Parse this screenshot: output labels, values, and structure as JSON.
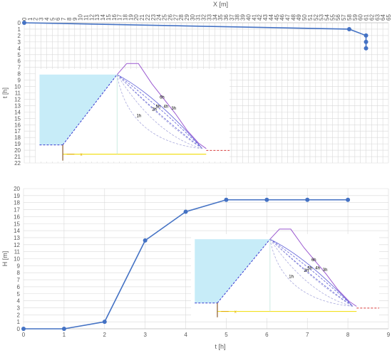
{
  "chart_data": [
    {
      "type": "line",
      "title": "",
      "xlabel": "X [m]",
      "ylabel": "t [h]",
      "x_axis_position": "top",
      "y_axis_inverted": true,
      "xlim": [
        0,
        65
      ],
      "ylim": [
        0,
        22
      ],
      "xticks": [
        "0",
        "1",
        "2",
        "3",
        "4",
        "5",
        "6",
        "7",
        "8",
        "9",
        "10",
        "11",
        "12",
        "13",
        "14",
        "15",
        "16",
        "17",
        "18",
        "19",
        "20",
        "21",
        "22",
        "23",
        "24",
        "25",
        "26",
        "27",
        "28",
        "29",
        "30",
        "31",
        "32",
        "33",
        "34",
        "35",
        "36",
        "37",
        "38",
        "39",
        "40",
        "41",
        "42",
        "43",
        "44",
        "45",
        "46",
        "47",
        "48",
        "49",
        "50",
        "51",
        "52",
        "53",
        "54",
        "55",
        "56",
        "57",
        "58",
        "59",
        "60",
        "61",
        "62",
        "63",
        "64",
        "65"
      ],
      "yticks": [
        "0",
        "1",
        "2",
        "3",
        "4",
        "5",
        "6",
        "7",
        "8",
        "9",
        "10",
        "11",
        "12",
        "13",
        "14",
        "15",
        "16",
        "17",
        "18",
        "19",
        "20",
        "21",
        "22"
      ],
      "grid": true,
      "series": [
        {
          "name": "",
          "color": "#4472c4",
          "points": [
            [
              0,
              0
            ],
            [
              58,
              1
            ],
            [
              61,
              2
            ],
            [
              61,
              3
            ],
            [
              61,
              4
            ]
          ]
        }
      ],
      "inset_labels": [
        "6h",
        "5h",
        "4h",
        "3h",
        "2h",
        "1h",
        "x"
      ]
    },
    {
      "type": "line",
      "title": "",
      "xlabel": "t [h]",
      "ylabel": "H [m]",
      "xlim": [
        0,
        9
      ],
      "ylim": [
        0,
        20
      ],
      "xticks": [
        "0",
        "1",
        "2",
        "3",
        "4",
        "5",
        "6",
        "7",
        "8",
        "9"
      ],
      "yticks": [
        "0",
        "1",
        "2",
        "3",
        "4",
        "5",
        "6",
        "7",
        "8",
        "9",
        "10",
        "11",
        "12",
        "13",
        "14",
        "15",
        "16",
        "17",
        "18",
        "19",
        "20"
      ],
      "grid": true,
      "series": [
        {
          "name": "",
          "color": "#4472c4",
          "points": [
            [
              0,
              0
            ],
            [
              1,
              0
            ],
            [
              2,
              1
            ],
            [
              3,
              12.6
            ],
            [
              4,
              16.7
            ],
            [
              5,
              18.4
            ],
            [
              6,
              18.4
            ],
            [
              7,
              18.4
            ],
            [
              8,
              18.4
            ]
          ]
        }
      ],
      "inset_labels": [
        "6h",
        "5h",
        "4h",
        "3h",
        "2h",
        "1h",
        "x"
      ]
    }
  ]
}
